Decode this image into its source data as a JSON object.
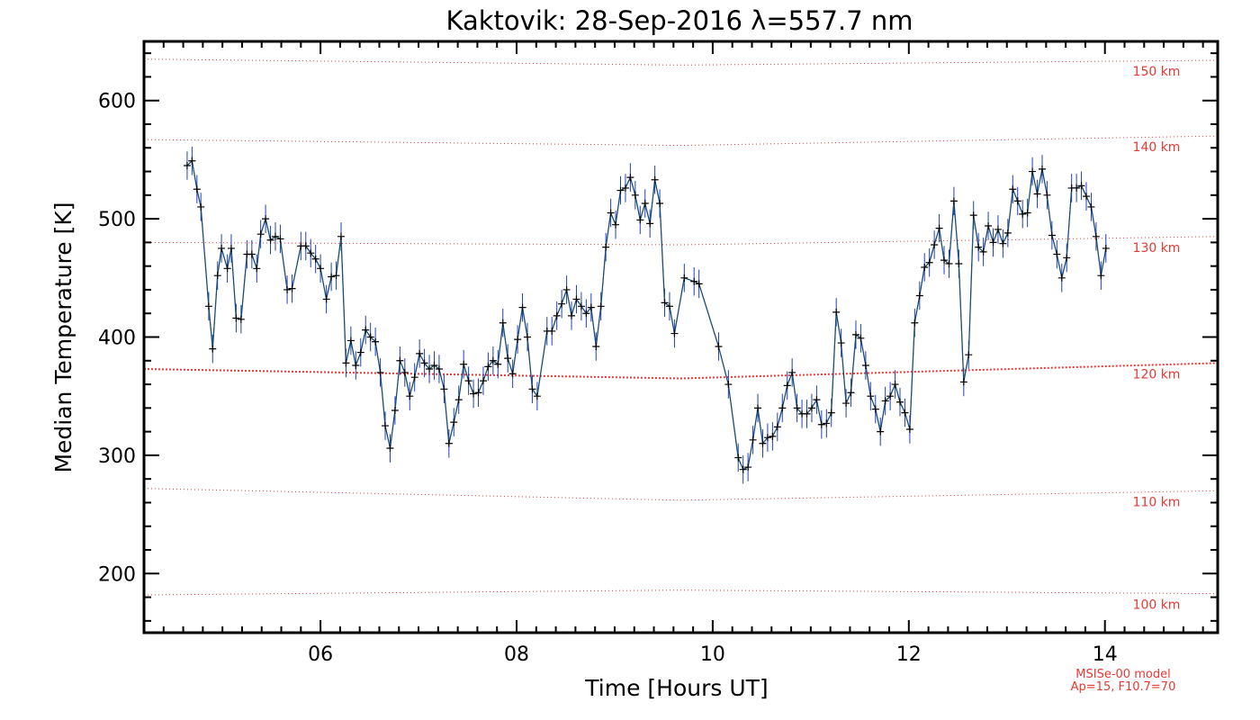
{
  "chart_data": {
    "type": "line",
    "title": "Kaktovik: 28-Sep-2016 λ=557.7 nm",
    "xlabel": "Time [Hours UT]",
    "ylabel": "Median Temperature [K]",
    "xlim": [
      4.2,
      15.15
    ],
    "ylim": [
      150,
      650
    ],
    "x_ticks": [
      6,
      8,
      10,
      12,
      14
    ],
    "x_tick_labels": [
      "06",
      "08",
      "10",
      "12",
      "14"
    ],
    "y_ticks": [
      200,
      300,
      400,
      500,
      600
    ],
    "y_tick_labels": [
      "200",
      "300",
      "400",
      "500",
      "600"
    ],
    "grid": false,
    "series": [
      {
        "color": "#1f3fbf",
        "marker": "+",
        "error": 12,
        "points": [
          [
            4.64,
            545
          ],
          [
            4.69,
            549
          ],
          [
            4.74,
            525
          ],
          [
            4.78,
            510
          ],
          [
            4.86,
            426
          ],
          [
            4.9,
            390
          ],
          [
            4.95,
            452
          ],
          [
            4.99,
            475
          ],
          [
            5.05,
            458
          ],
          [
            5.09,
            475
          ],
          [
            5.14,
            416
          ],
          [
            5.19,
            415
          ],
          [
            5.25,
            470
          ],
          [
            5.3,
            470
          ],
          [
            5.35,
            458
          ],
          [
            5.39,
            487
          ],
          [
            5.44,
            500
          ],
          [
            5.49,
            482
          ],
          [
            5.54,
            485
          ],
          [
            5.59,
            483
          ],
          [
            5.66,
            440
          ],
          [
            5.71,
            441
          ],
          [
            5.8,
            477
          ],
          [
            5.85,
            477
          ],
          [
            5.9,
            471
          ],
          [
            5.95,
            466
          ],
          [
            6.0,
            458
          ],
          [
            6.06,
            432
          ],
          [
            6.11,
            451
          ],
          [
            6.16,
            452
          ],
          [
            6.21,
            485
          ],
          [
            6.26,
            378
          ],
          [
            6.31,
            397
          ],
          [
            6.36,
            376
          ],
          [
            6.41,
            387
          ],
          [
            6.46,
            406
          ],
          [
            6.51,
            400
          ],
          [
            6.56,
            396
          ],
          [
            6.61,
            370
          ],
          [
            6.66,
            325
          ],
          [
            6.71,
            306
          ],
          [
            6.76,
            338
          ],
          [
            6.81,
            380
          ],
          [
            6.86,
            370
          ],
          [
            6.91,
            350
          ],
          [
            6.96,
            366
          ],
          [
            7.01,
            386
          ],
          [
            7.06,
            378
          ],
          [
            7.11,
            373
          ],
          [
            7.16,
            376
          ],
          [
            7.21,
            373
          ],
          [
            7.26,
            356
          ],
          [
            7.31,
            310
          ],
          [
            7.36,
            328
          ],
          [
            7.41,
            347
          ],
          [
            7.46,
            377
          ],
          [
            7.51,
            363
          ],
          [
            7.56,
            352
          ],
          [
            7.61,
            353
          ],
          [
            7.66,
            363
          ],
          [
            7.71,
            375
          ],
          [
            7.76,
            380
          ],
          [
            7.81,
            377
          ],
          [
            7.86,
            412
          ],
          [
            7.91,
            382
          ],
          [
            7.96,
            369
          ],
          [
            8.01,
            398
          ],
          [
            8.06,
            425
          ],
          [
            8.11,
            400
          ],
          [
            8.16,
            356
          ],
          [
            8.21,
            350
          ],
          [
            8.31,
            405
          ],
          [
            8.36,
            405
          ],
          [
            8.41,
            418
          ],
          [
            8.46,
            428
          ],
          [
            8.51,
            440
          ],
          [
            8.56,
            418
          ],
          [
            8.61,
            432
          ],
          [
            8.66,
            426
          ],
          [
            8.71,
            420
          ],
          [
            8.76,
            425
          ],
          [
            8.81,
            392
          ],
          [
            8.86,
            426
          ],
          [
            8.91,
            476
          ],
          [
            8.96,
            505
          ],
          [
            9.01,
            495
          ],
          [
            9.06,
            524
          ],
          [
            9.11,
            526
          ],
          [
            9.16,
            535
          ],
          [
            9.21,
            520
          ],
          [
            9.26,
            499
          ],
          [
            9.31,
            513
          ],
          [
            9.36,
            496
          ],
          [
            9.41,
            533
          ],
          [
            9.46,
            513
          ],
          [
            9.51,
            429
          ],
          [
            9.56,
            426
          ],
          [
            9.61,
            403
          ],
          [
            9.71,
            450
          ],
          [
            9.81,
            447
          ],
          [
            9.86,
            445
          ],
          [
            10.06,
            392
          ],
          [
            10.16,
            360
          ],
          [
            10.26,
            298
          ],
          [
            10.31,
            288
          ],
          [
            10.36,
            290
          ],
          [
            10.41,
            313
          ],
          [
            10.46,
            340
          ],
          [
            10.51,
            310
          ],
          [
            10.56,
            315
          ],
          [
            10.61,
            316
          ],
          [
            10.66,
            324
          ],
          [
            10.71,
            340
          ],
          [
            10.76,
            359
          ],
          [
            10.81,
            370
          ],
          [
            10.86,
            340
          ],
          [
            10.91,
            335
          ],
          [
            10.96,
            335
          ],
          [
            11.01,
            340
          ],
          [
            11.06,
            347
          ],
          [
            11.11,
            326
          ],
          [
            11.16,
            327
          ],
          [
            11.21,
            336
          ],
          [
            11.26,
            421
          ],
          [
            11.31,
            395
          ],
          [
            11.36,
            344
          ],
          [
            11.41,
            353
          ],
          [
            11.46,
            402
          ],
          [
            11.51,
            399
          ],
          [
            11.56,
            376
          ],
          [
            11.61,
            350
          ],
          [
            11.66,
            339
          ],
          [
            11.71,
            320
          ],
          [
            11.76,
            346
          ],
          [
            11.81,
            350
          ],
          [
            11.86,
            360
          ],
          [
            11.91,
            345
          ],
          [
            11.96,
            336
          ],
          [
            12.01,
            322
          ],
          [
            12.06,
            412
          ],
          [
            12.11,
            435
          ],
          [
            12.16,
            459
          ],
          [
            12.21,
            463
          ],
          [
            12.26,
            478
          ],
          [
            12.31,
            492
          ],
          [
            12.36,
            465
          ],
          [
            12.41,
            462
          ],
          [
            12.46,
            515
          ],
          [
            12.51,
            462
          ],
          [
            12.56,
            362
          ],
          [
            12.61,
            385
          ],
          [
            12.66,
            503
          ],
          [
            12.71,
            476
          ],
          [
            12.76,
            472
          ],
          [
            12.81,
            494
          ],
          [
            12.86,
            480
          ],
          [
            12.91,
            491
          ],
          [
            12.96,
            479
          ],
          [
            13.01,
            488
          ],
          [
            13.06,
            525
          ],
          [
            13.11,
            515
          ],
          [
            13.16,
            504
          ],
          [
            13.21,
            505
          ],
          [
            13.26,
            540
          ],
          [
            13.31,
            521
          ],
          [
            13.36,
            542
          ],
          [
            13.41,
            520
          ],
          [
            13.46,
            486
          ],
          [
            13.51,
            470
          ],
          [
            13.56,
            450
          ],
          [
            13.61,
            467
          ],
          [
            13.66,
            526
          ],
          [
            13.71,
            526
          ],
          [
            13.76,
            528
          ],
          [
            13.81,
            519
          ],
          [
            13.86,
            510
          ],
          [
            13.91,
            485
          ],
          [
            13.96,
            452
          ],
          [
            14.01,
            475
          ]
        ]
      }
    ],
    "altitude_lines": [
      {
        "label": "150 km",
        "values": [
          635,
          630,
          634
        ]
      },
      {
        "label": "140 km",
        "values": [
          567,
          562,
          570
        ]
      },
      {
        "label": "130 km",
        "values": [
          480,
          478,
          485
        ]
      },
      {
        "label": "120 km",
        "values": [
          373,
          365,
          378
        ]
      },
      {
        "label": "110 km",
        "values": [
          272,
          262,
          270
        ]
      },
      {
        "label": "100 km",
        "values": [
          182,
          186,
          183
        ]
      }
    ],
    "model_note": [
      "MSISe-00 model",
      "Ap=15, F10.7=70"
    ],
    "colors": {
      "data_line": "#1f3fbf",
      "fit_line": "#1b5e20",
      "model": "#e53935",
      "frame": "#000000"
    }
  }
}
